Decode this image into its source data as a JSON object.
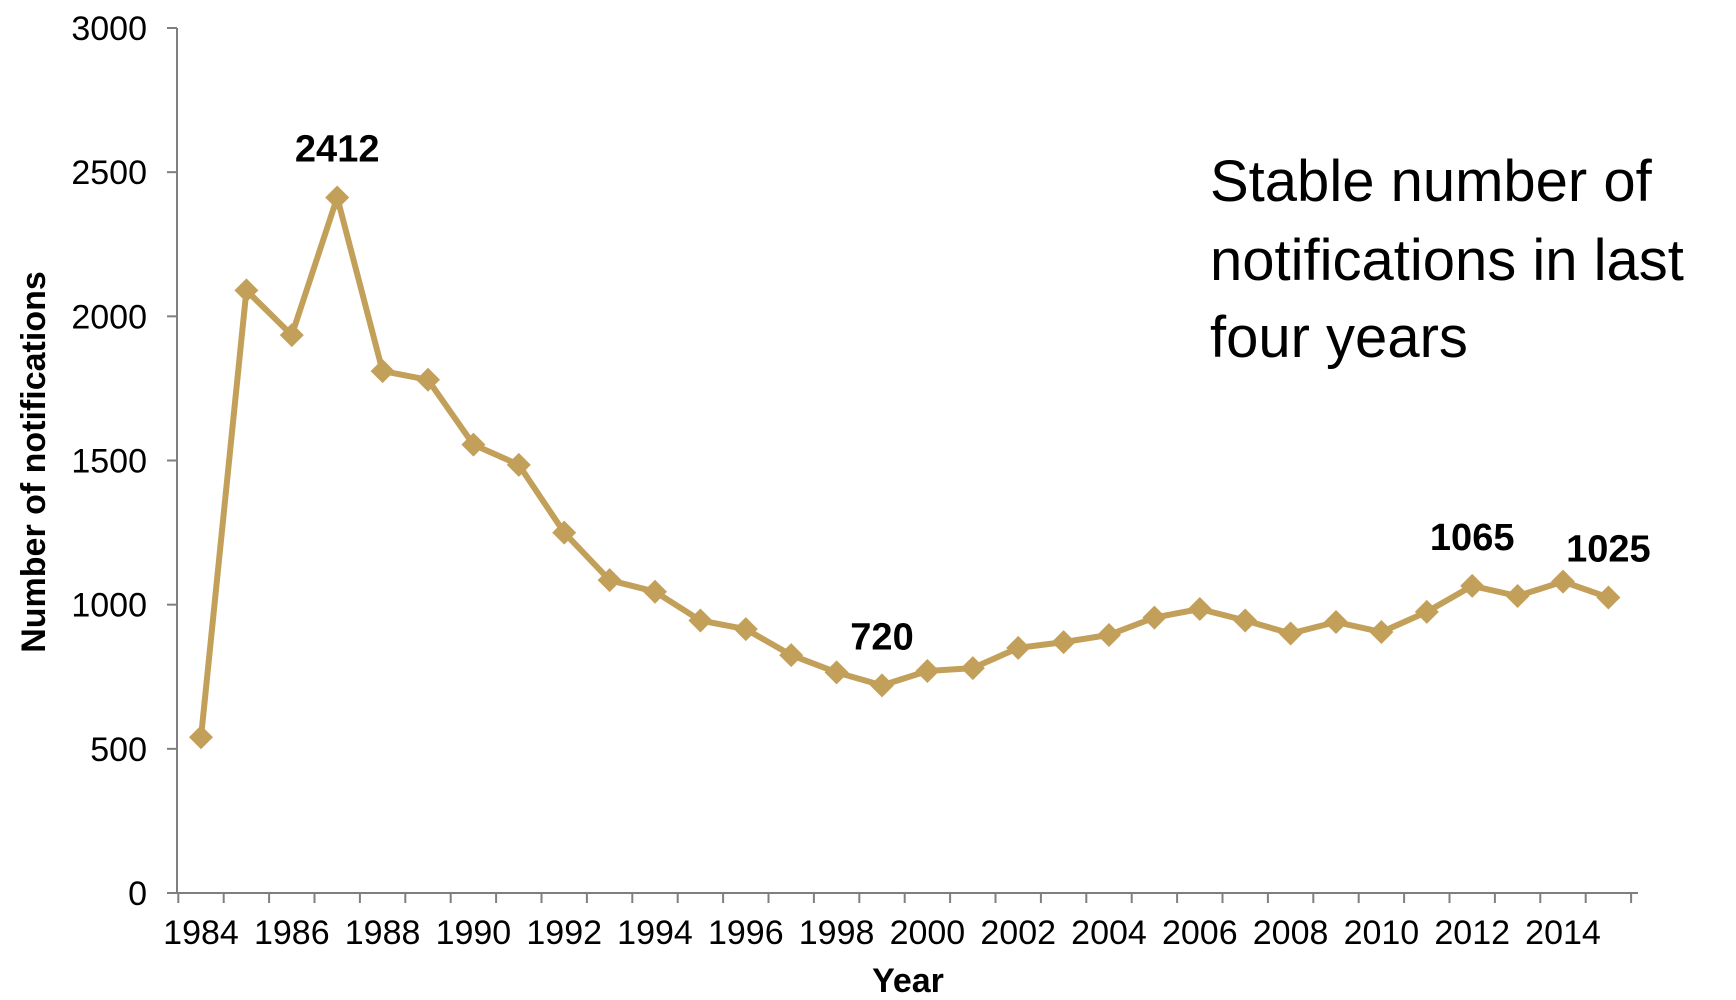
{
  "chart_data": {
    "type": "line",
    "xlabel": "Year",
    "ylabel": "Number of notifications",
    "ylim": [
      0,
      3000
    ],
    "yticks": [
      0,
      500,
      1000,
      1500,
      2000,
      2500,
      3000
    ],
    "xlim": [
      1984,
      2015
    ],
    "xtick_labels": [
      "1984",
      "1986",
      "1988",
      "1990",
      "1992",
      "1994",
      "1996",
      "1998",
      "2000",
      "2002",
      "2004",
      "2006",
      "2008",
      "2010",
      "2012",
      "2014"
    ],
    "grid": false,
    "legend": "none",
    "series": [
      {
        "color": "#C3A05A",
        "marker": "diamond",
        "x": [
          1984,
          1985,
          1986,
          1987,
          1988,
          1989,
          1990,
          1991,
          1992,
          1993,
          1994,
          1995,
          1996,
          1997,
          1998,
          1999,
          2000,
          2001,
          2002,
          2003,
          2004,
          2005,
          2006,
          2007,
          2008,
          2009,
          2010,
          2011,
          2012,
          2013,
          2014,
          2015
        ],
        "values": [
          540,
          2090,
          1935,
          2412,
          1810,
          1780,
          1555,
          1485,
          1250,
          1085,
          1045,
          945,
          915,
          825,
          765,
          720,
          770,
          780,
          850,
          870,
          895,
          955,
          985,
          945,
          900,
          940,
          905,
          975,
          1065,
          1030,
          1080,
          1025
        ]
      }
    ],
    "data_labels": [
      {
        "x": 1987,
        "text": "2412"
      },
      {
        "x": 1999,
        "text": "720"
      },
      {
        "x": 2012,
        "text": "1065"
      },
      {
        "x": 2015,
        "text": "1025"
      }
    ],
    "annotation": {
      "lines": [
        "Stable number of",
        "notifications in last",
        "four years"
      ]
    }
  }
}
